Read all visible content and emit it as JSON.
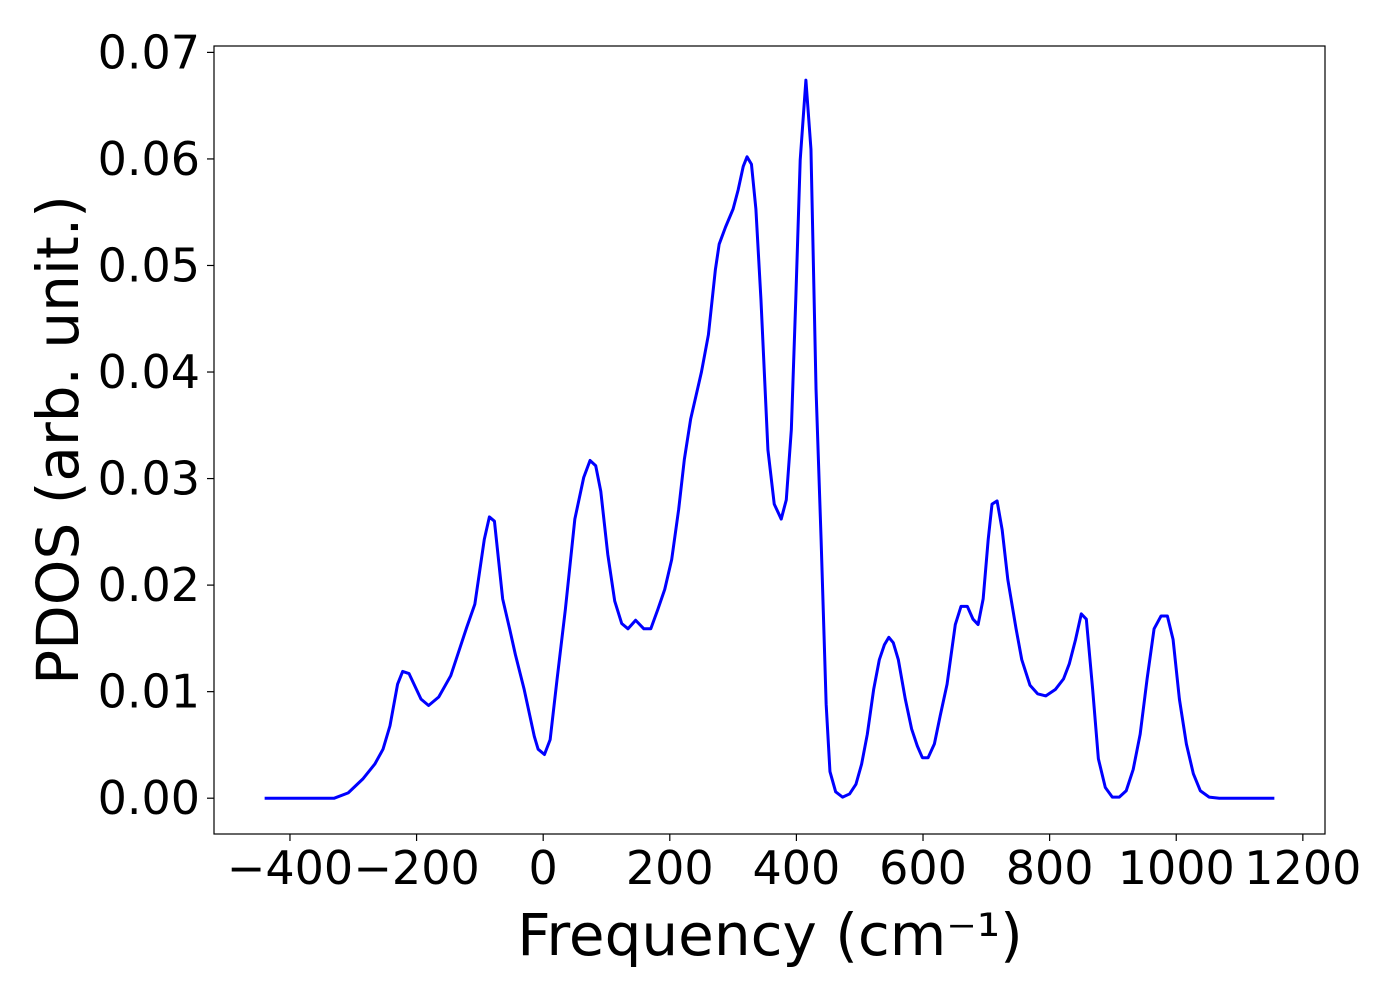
{
  "chart_data": {
    "type": "line",
    "xlabel": "Frequency (cm⁻¹)",
    "ylabel": "PDOS (arb. unit.)",
    "xlim": [
      -520,
      1235
    ],
    "ylim": [
      -0.00336,
      0.0706
    ],
    "xticks": [
      {
        "value": -400,
        "label": "−400"
      },
      {
        "value": -200,
        "label": "−200"
      },
      0,
      200,
      400,
      600,
      800,
      1000,
      1200
    ],
    "yticks": [
      {
        "value": 0,
        "label": "0.00"
      },
      0.01,
      0.02,
      0.03,
      0.04,
      0.05,
      0.06,
      0.07
    ],
    "series": [
      {
        "color": "#0000ff",
        "x": [
          -440,
          -400,
          -360,
          -330,
          -308,
          -285,
          -266,
          -253,
          -242,
          -230,
          -222,
          -212,
          -193,
          -181,
          -165,
          -146,
          -121,
          -108,
          -93,
          -85,
          -77,
          -64,
          -53,
          -44,
          -30,
          -14,
          -8,
          2,
          11,
          22,
          35,
          50,
          64,
          74,
          83,
          91,
          102,
          113,
          124,
          134,
          146,
          159,
          170,
          181,
          192,
          203,
          214,
          223,
          233,
          250,
          261,
          272,
          278,
          288,
          300,
          308,
          316,
          322,
          329,
          336,
          344,
          355,
          365,
          376,
          384,
          392,
          399,
          406,
          415,
          423,
          431,
          439,
          447,
          453,
          462,
          473,
          484,
          494,
          503,
          512,
          522,
          531,
          539,
          546,
          553,
          561,
          572,
          582,
          591,
          599,
          608,
          618,
          627,
          638,
          651,
          660,
          670,
          679,
          687,
          695,
          703,
          709,
          717,
          725,
          734,
          747,
          756,
          769,
          781,
          794,
          809,
          822,
          831,
          841,
          850,
          858,
          868,
          877,
          888,
          899,
          910,
          921,
          932,
          943,
          954,
          965,
          976,
          986,
          995,
          1005,
          1016,
          1027,
          1038,
          1052,
          1068,
          1100,
          1155
        ],
        "values": [
          0,
          0,
          0,
          0,
          0.0005,
          0.0018,
          0.0032,
          0.0046,
          0.0068,
          0.0107,
          0.0119,
          0.0117,
          0.0093,
          0.0087,
          0.0095,
          0.0115,
          0.016,
          0.0182,
          0.0243,
          0.0264,
          0.026,
          0.0187,
          0.0159,
          0.0135,
          0.0102,
          0.0058,
          0.0046,
          0.0041,
          0.0055,
          0.0112,
          0.0177,
          0.0262,
          0.0301,
          0.0317,
          0.0312,
          0.0288,
          0.0229,
          0.0185,
          0.0164,
          0.0159,
          0.0167,
          0.0159,
          0.0159,
          0.0177,
          0.0196,
          0.0224,
          0.0271,
          0.0318,
          0.0356,
          0.04,
          0.0435,
          0.0496,
          0.052,
          0.0536,
          0.0553,
          0.0571,
          0.0593,
          0.0602,
          0.0595,
          0.0553,
          0.0468,
          0.0327,
          0.0276,
          0.0262,
          0.028,
          0.0346,
          0.0468,
          0.0599,
          0.0674,
          0.0609,
          0.0384,
          0.0243,
          0.0088,
          0.0025,
          0.0006,
          0.0001,
          0.0004,
          0.0013,
          0.0032,
          0.006,
          0.0102,
          0.013,
          0.0144,
          0.0151,
          0.0146,
          0.013,
          0.0093,
          0.0065,
          0.0049,
          0.0038,
          0.0038,
          0.0051,
          0.0077,
          0.0107,
          0.0163,
          0.018,
          0.018,
          0.0168,
          0.0163,
          0.0187,
          0.0243,
          0.0276,
          0.0279,
          0.0252,
          0.0205,
          0.0159,
          0.013,
          0.0106,
          0.0098,
          0.0096,
          0.0102,
          0.0112,
          0.0126,
          0.0149,
          0.0173,
          0.0168,
          0.0102,
          0.0037,
          0.001,
          0.0001,
          0.0001,
          0.0007,
          0.0027,
          0.006,
          0.0112,
          0.0159,
          0.0171,
          0.0171,
          0.0149,
          0.0093,
          0.0051,
          0.0023,
          0.0007,
          0.0001,
          0,
          0,
          0
        ]
      }
    ]
  }
}
